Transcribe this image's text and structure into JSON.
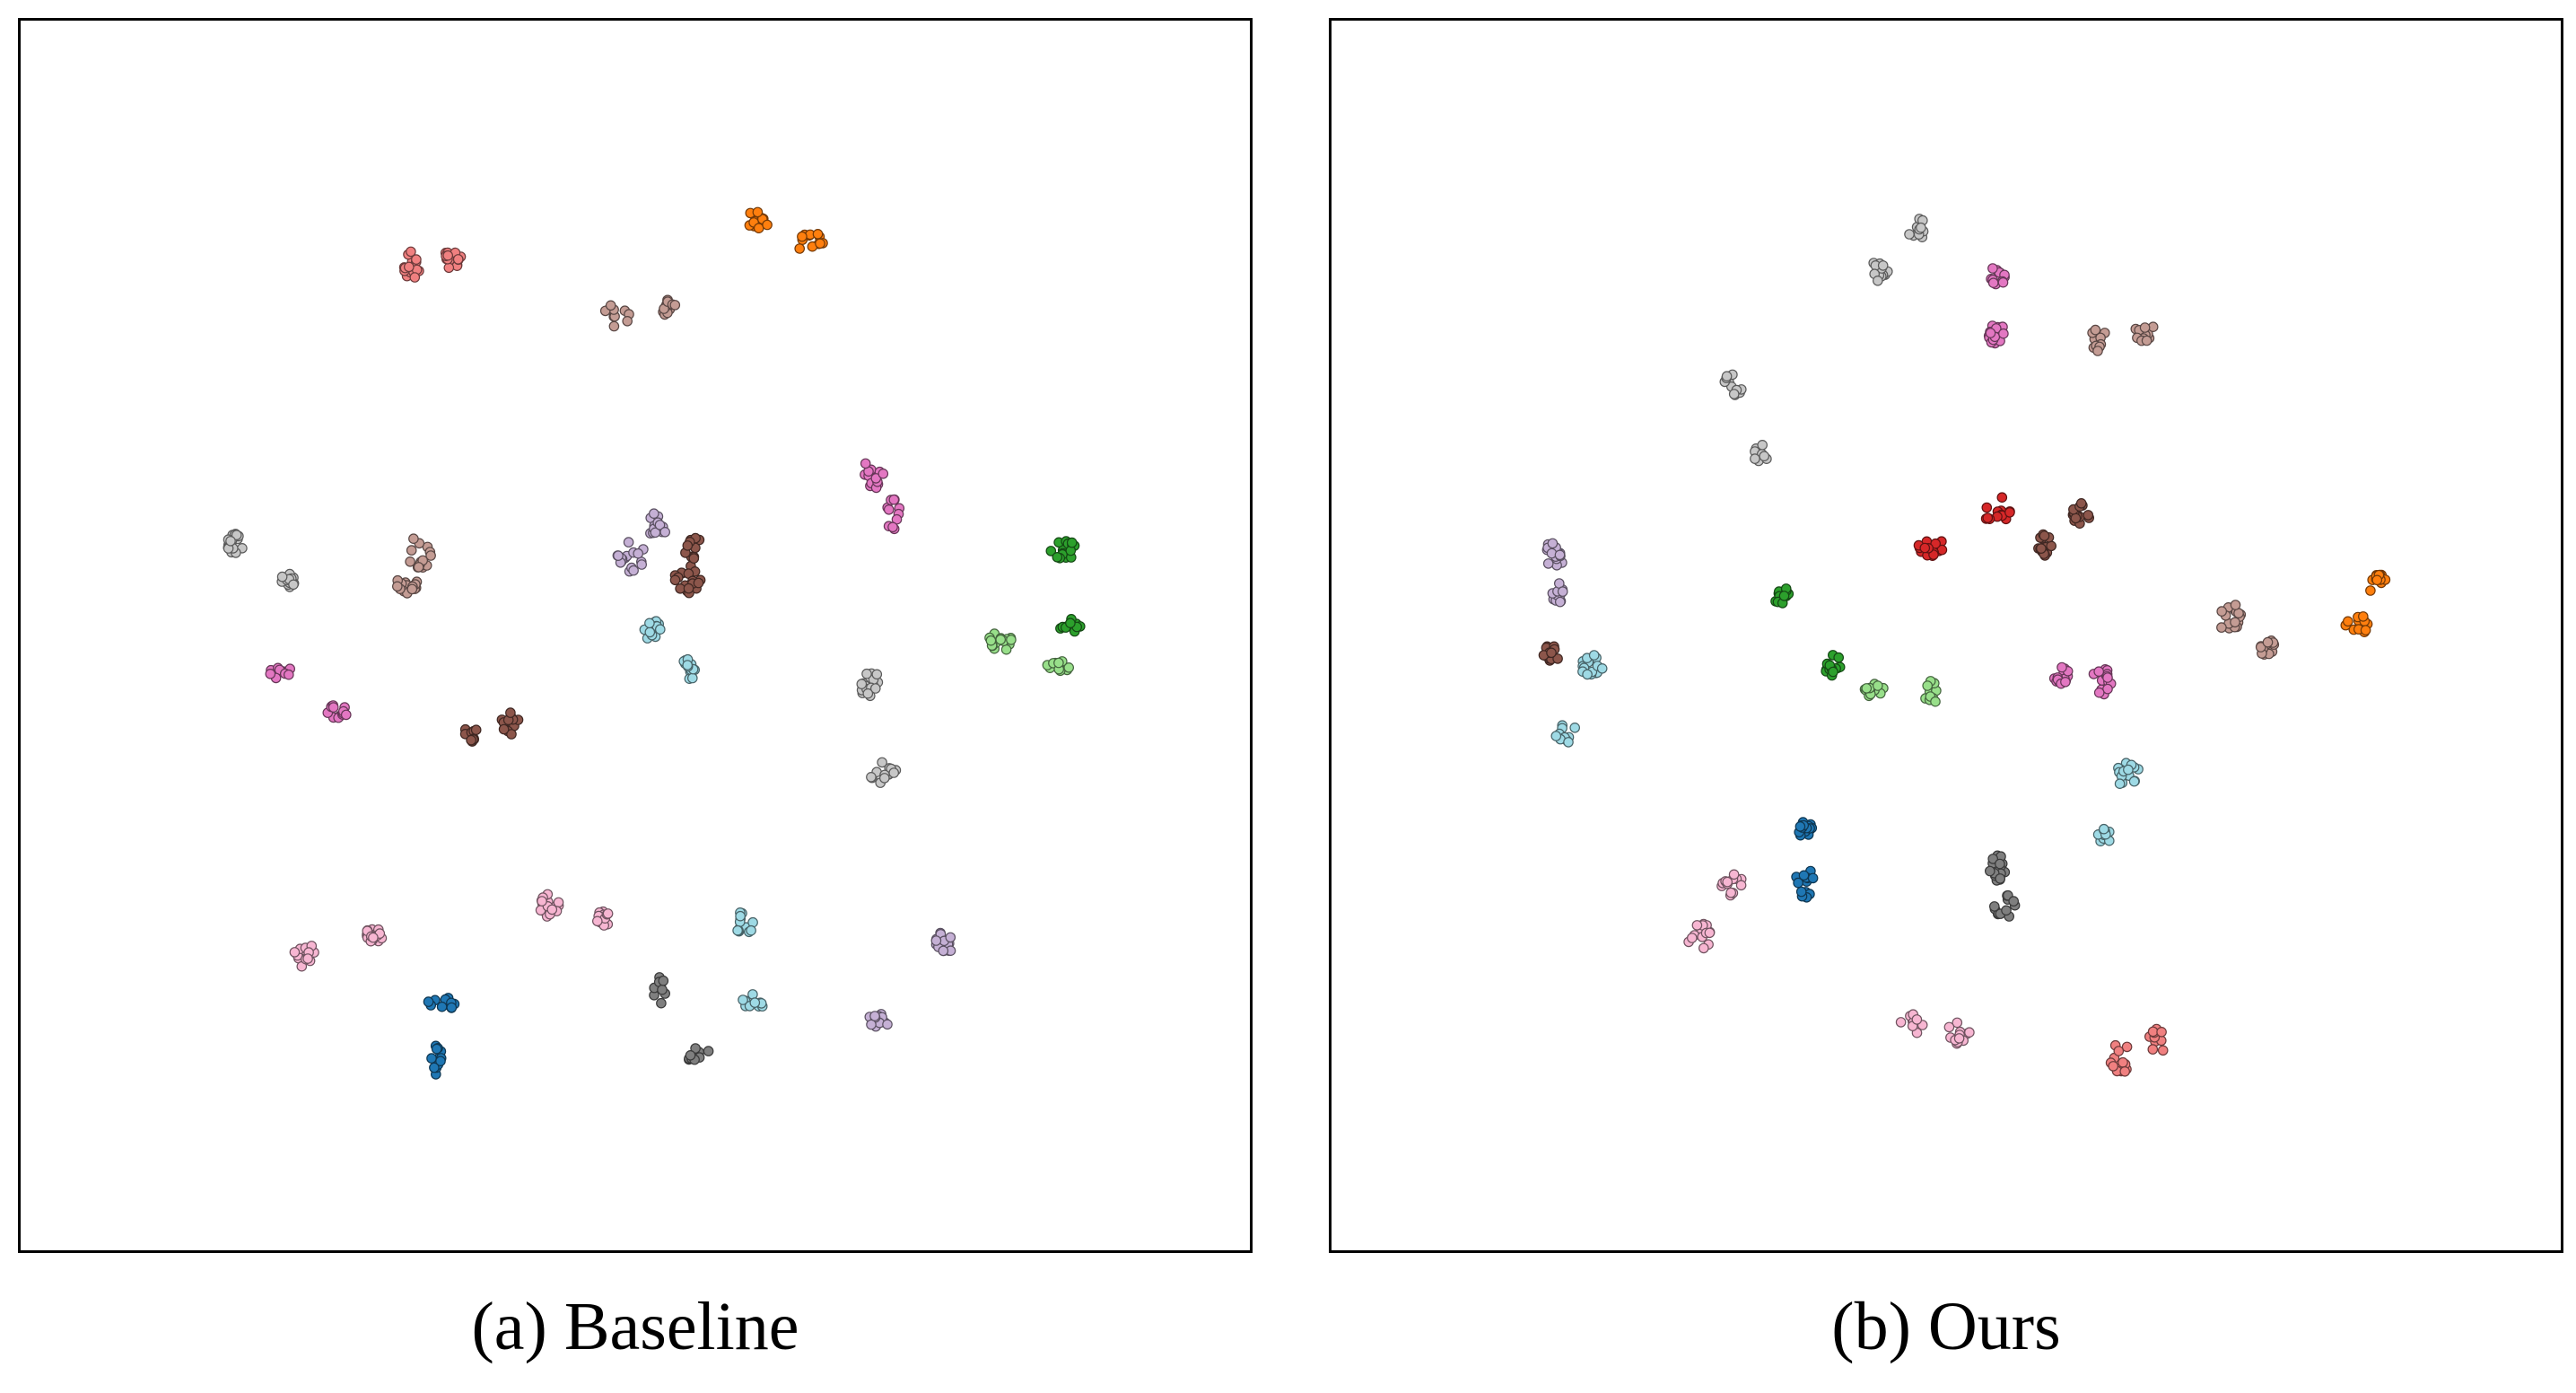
{
  "figure": {
    "panel_a_caption": "(a)  Baseline",
    "panel_b_caption": "(b)  Ours"
  },
  "chart_data": [
    {
      "type": "scatter",
      "title": "(a)  Baseline",
      "xlim": [
        0,
        100
      ],
      "ylim": [
        0,
        100
      ],
      "grid": false,
      "legend": "none",
      "clusters": [
        {
          "color": "#f08080",
          "x": 31.8,
          "y": 80.1
        },
        {
          "color": "#f08080",
          "x": 35.0,
          "y": 80.7
        },
        {
          "color": "#c49c94",
          "x": 48.6,
          "y": 76.0
        },
        {
          "color": "#c49c94",
          "x": 52.8,
          "y": 76.7
        },
        {
          "color": "#ff7f0e",
          "x": 60.1,
          "y": 83.8
        },
        {
          "color": "#ff7f0e",
          "x": 64.2,
          "y": 81.9
        },
        {
          "color": "#c7c7c7",
          "x": 17.4,
          "y": 57.4
        },
        {
          "color": "#c7c7c7",
          "x": 21.6,
          "y": 54.5
        },
        {
          "color": "#c49c94",
          "x": 32.5,
          "y": 56.8
        },
        {
          "color": "#c49c94",
          "x": 31.4,
          "y": 54.1
        },
        {
          "color": "#c5b0d5",
          "x": 51.8,
          "y": 59.0
        },
        {
          "color": "#c5b0d5",
          "x": 49.6,
          "y": 56.5
        },
        {
          "color": "#8c564b",
          "x": 54.7,
          "y": 56.9
        },
        {
          "color": "#8c564b",
          "x": 54.2,
          "y": 54.5
        },
        {
          "color": "#e377c2",
          "x": 69.3,
          "y": 63.0
        },
        {
          "color": "#e377c2",
          "x": 71.0,
          "y": 59.9
        },
        {
          "color": "#2ca02c",
          "x": 84.9,
          "y": 57.0
        },
        {
          "color": "#2ca02c",
          "x": 85.4,
          "y": 50.7
        },
        {
          "color": "#98df8a",
          "x": 79.7,
          "y": 49.5
        },
        {
          "color": "#98df8a",
          "x": 84.4,
          "y": 47.4
        },
        {
          "color": "#9edae5",
          "x": 51.4,
          "y": 50.5
        },
        {
          "color": "#9edae5",
          "x": 54.3,
          "y": 47.2
        },
        {
          "color": "#e377c2",
          "x": 21.2,
          "y": 46.9
        },
        {
          "color": "#e377c2",
          "x": 25.7,
          "y": 43.8
        },
        {
          "color": "#8c564b",
          "x": 36.6,
          "y": 41.9
        },
        {
          "color": "#8c564b",
          "x": 39.9,
          "y": 42.8
        },
        {
          "color": "#c7c7c7",
          "x": 68.9,
          "y": 46.1
        },
        {
          "color": "#c7c7c7",
          "x": 70.1,
          "y": 38.9
        },
        {
          "color": "#f7b6d2",
          "x": 23.1,
          "y": 24.1
        },
        {
          "color": "#f7b6d2",
          "x": 28.7,
          "y": 25.7
        },
        {
          "color": "#f7b6d2",
          "x": 43.0,
          "y": 28.1
        },
        {
          "color": "#f7b6d2",
          "x": 47.4,
          "y": 27.0
        },
        {
          "color": "#1f77b4",
          "x": 34.3,
          "y": 20.1
        },
        {
          "color": "#1f77b4",
          "x": 33.8,
          "y": 15.6
        },
        {
          "color": "#7f7f7f",
          "x": 51.9,
          "y": 21.1
        },
        {
          "color": "#7f7f7f",
          "x": 54.9,
          "y": 16.2
        },
        {
          "color": "#9edae5",
          "x": 58.9,
          "y": 26.7
        },
        {
          "color": "#9edae5",
          "x": 59.6,
          "y": 20.4
        },
        {
          "color": "#c5b0d5",
          "x": 69.8,
          "y": 18.6
        },
        {
          "color": "#c5b0d5",
          "x": 75.1,
          "y": 25.0
        }
      ]
    },
    {
      "type": "scatter",
      "title": "(b)  Ours",
      "xlim": [
        0,
        100
      ],
      "ylim": [
        0,
        100
      ],
      "grid": false,
      "legend": "none",
      "clusters": [
        {
          "color": "#c7c7c7",
          "x": 47.4,
          "y": 83.0
        },
        {
          "color": "#c7c7c7",
          "x": 44.6,
          "y": 79.7
        },
        {
          "color": "#e377c2",
          "x": 54.1,
          "y": 79.2
        },
        {
          "color": "#e377c2",
          "x": 53.9,
          "y": 74.6
        },
        {
          "color": "#c49c94",
          "x": 62.4,
          "y": 74.2
        },
        {
          "color": "#c49c94",
          "x": 66.0,
          "y": 74.8
        },
        {
          "color": "#c7c7c7",
          "x": 32.5,
          "y": 70.2
        },
        {
          "color": "#c7c7c7",
          "x": 35.0,
          "y": 64.8
        },
        {
          "color": "#d62728",
          "x": 48.7,
          "y": 57.1
        },
        {
          "color": "#d62728",
          "x": 54.3,
          "y": 60.0
        },
        {
          "color": "#8c564b",
          "x": 58.1,
          "y": 57.4
        },
        {
          "color": "#8c564b",
          "x": 60.9,
          "y": 59.9
        },
        {
          "color": "#2ca02c",
          "x": 36.6,
          "y": 53.2
        },
        {
          "color": "#2ca02c",
          "x": 40.7,
          "y": 47.6
        },
        {
          "color": "#98df8a",
          "x": 44.2,
          "y": 45.6
        },
        {
          "color": "#98df8a",
          "x": 48.9,
          "y": 45.5
        },
        {
          "color": "#c5b0d5",
          "x": 18.2,
          "y": 56.6
        },
        {
          "color": "#c5b0d5",
          "x": 18.3,
          "y": 53.5
        },
        {
          "color": "#8c564b",
          "x": 17.8,
          "y": 48.4
        },
        {
          "color": "#9edae5",
          "x": 21.1,
          "y": 47.6
        },
        {
          "color": "#9edae5",
          "x": 19.2,
          "y": 42.3
        },
        {
          "color": "#e377c2",
          "x": 59.4,
          "y": 46.7
        },
        {
          "color": "#e377c2",
          "x": 62.6,
          "y": 46.3
        },
        {
          "color": "#c49c94",
          "x": 73.2,
          "y": 51.3
        },
        {
          "color": "#c49c94",
          "x": 76.1,
          "y": 49.1
        },
        {
          "color": "#ff7f0e",
          "x": 85.1,
          "y": 54.1
        },
        {
          "color": "#ff7f0e",
          "x": 83.5,
          "y": 50.9
        },
        {
          "color": "#9edae5",
          "x": 64.7,
          "y": 38.8
        },
        {
          "color": "#9edae5",
          "x": 62.8,
          "y": 33.6
        },
        {
          "color": "#1f77b4",
          "x": 38.5,
          "y": 34.2
        },
        {
          "color": "#1f77b4",
          "x": 38.6,
          "y": 30.0
        },
        {
          "color": "#f7b6d2",
          "x": 32.7,
          "y": 29.9
        },
        {
          "color": "#f7b6d2",
          "x": 30.0,
          "y": 25.4
        },
        {
          "color": "#7f7f7f",
          "x": 54.2,
          "y": 31.0
        },
        {
          "color": "#7f7f7f",
          "x": 54.7,
          "y": 28.0
        },
        {
          "color": "#f7b6d2",
          "x": 47.3,
          "y": 18.4
        },
        {
          "color": "#f7b6d2",
          "x": 51.0,
          "y": 17.5
        },
        {
          "color": "#f08080",
          "x": 64.2,
          "y": 15.7
        },
        {
          "color": "#f08080",
          "x": 67.3,
          "y": 17.1
        }
      ]
    }
  ]
}
